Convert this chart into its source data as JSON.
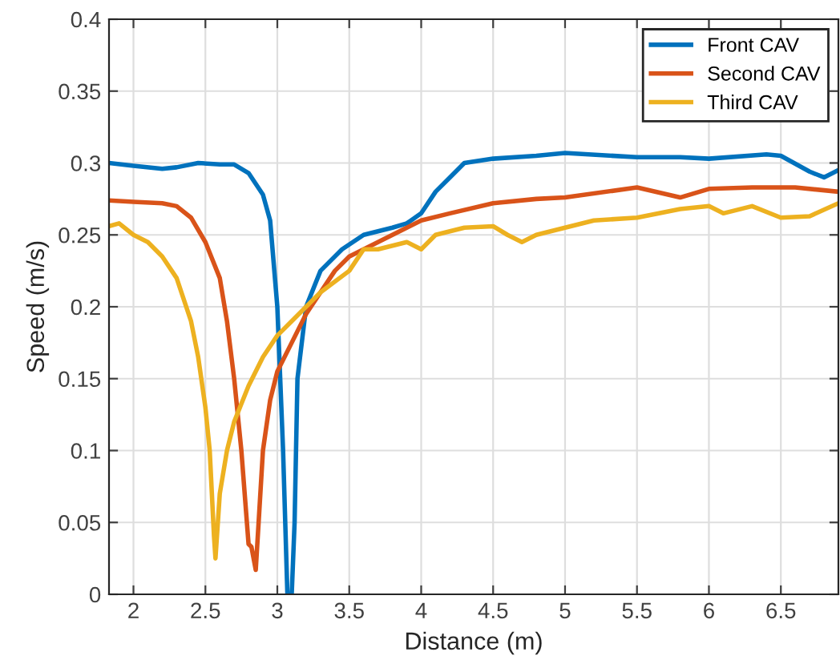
{
  "chart_data": {
    "type": "line",
    "xlabel": "Distance (m)",
    "ylabel": "Speed (m/s)",
    "xlim": [
      1.83,
      6.9
    ],
    "xticks": [
      2,
      2.5,
      3,
      3.5,
      4,
      4.5,
      5,
      5.5,
      6,
      6.5
    ],
    "ylim": [
      0,
      0.4
    ],
    "yticks": [
      0,
      0.05,
      0.1,
      0.15,
      0.2,
      0.25,
      0.3,
      0.35,
      0.4
    ],
    "grid": true,
    "legend": "top right",
    "line_style": "solid",
    "marker": "none",
    "series": [
      {
        "name": "Front CAV",
        "color": "#0072bd",
        "x": [
          1.83,
          2.0,
          2.2,
          2.3,
          2.45,
          2.6,
          2.7,
          2.8,
          2.9,
          2.95,
          3.0,
          3.04,
          3.07,
          3.1,
          3.12,
          3.14,
          3.2,
          3.3,
          3.45,
          3.6,
          3.8,
          3.9,
          4.0,
          4.1,
          4.2,
          4.3,
          4.5,
          4.8,
          5.0,
          5.5,
          5.8,
          6.0,
          6.4,
          6.5,
          6.7,
          6.8,
          6.9
        ],
        "values": [
          0.3,
          0.298,
          0.296,
          0.297,
          0.3,
          0.299,
          0.299,
          0.293,
          0.278,
          0.26,
          0.2,
          0.1,
          0.0,
          0.0,
          0.05,
          0.15,
          0.2,
          0.225,
          0.24,
          0.25,
          0.255,
          0.258,
          0.265,
          0.28,
          0.29,
          0.3,
          0.303,
          0.305,
          0.307,
          0.304,
          0.304,
          0.303,
          0.306,
          0.305,
          0.294,
          0.29,
          0.295
        ]
      },
      {
        "name": "Second CAV",
        "color": "#d95319",
        "x": [
          1.83,
          2.0,
          2.2,
          2.3,
          2.4,
          2.5,
          2.6,
          2.65,
          2.7,
          2.75,
          2.8,
          2.82,
          2.85,
          2.87,
          2.9,
          2.95,
          3.0,
          3.1,
          3.2,
          3.3,
          3.4,
          3.5,
          3.7,
          3.9,
          4.0,
          4.2,
          4.5,
          4.8,
          5.0,
          5.5,
          5.8,
          6.0,
          6.3,
          6.6,
          6.9
        ],
        "values": [
          0.274,
          0.273,
          0.272,
          0.27,
          0.262,
          0.245,
          0.22,
          0.19,
          0.15,
          0.1,
          0.035,
          0.033,
          0.017,
          0.05,
          0.1,
          0.135,
          0.155,
          0.175,
          0.195,
          0.21,
          0.225,
          0.235,
          0.245,
          0.255,
          0.26,
          0.265,
          0.272,
          0.275,
          0.276,
          0.283,
          0.276,
          0.282,
          0.283,
          0.283,
          0.28
        ]
      },
      {
        "name": "Third CAV",
        "color": "#edb120",
        "x": [
          1.83,
          1.9,
          2.0,
          2.1,
          2.2,
          2.3,
          2.4,
          2.45,
          2.5,
          2.53,
          2.56,
          2.57,
          2.6,
          2.65,
          2.7,
          2.8,
          2.9,
          3.0,
          3.1,
          3.2,
          3.3,
          3.5,
          3.6,
          3.7,
          3.9,
          4.0,
          4.1,
          4.3,
          4.5,
          4.6,
          4.7,
          4.8,
          5.0,
          5.2,
          5.5,
          5.8,
          6.0,
          6.1,
          6.3,
          6.5,
          6.7,
          6.9
        ],
        "values": [
          0.256,
          0.258,
          0.25,
          0.245,
          0.235,
          0.22,
          0.19,
          0.165,
          0.13,
          0.1,
          0.04,
          0.025,
          0.07,
          0.1,
          0.12,
          0.145,
          0.165,
          0.18,
          0.19,
          0.2,
          0.21,
          0.225,
          0.24,
          0.24,
          0.245,
          0.24,
          0.25,
          0.255,
          0.256,
          0.25,
          0.245,
          0.25,
          0.255,
          0.26,
          0.262,
          0.268,
          0.27,
          0.265,
          0.27,
          0.262,
          0.263,
          0.272
        ]
      }
    ]
  }
}
